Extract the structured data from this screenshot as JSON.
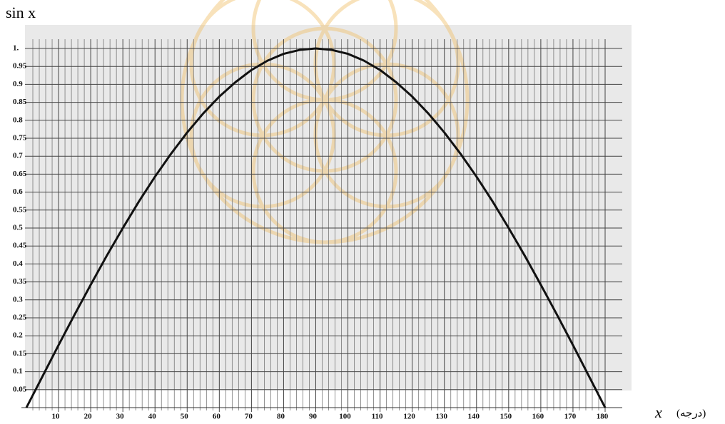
{
  "chart_data": {
    "type": "line",
    "y_label": "sin x",
    "x_label": "x",
    "x_unit": "(درجه)",
    "x": [
      0,
      5,
      10,
      15,
      20,
      25,
      30,
      35,
      40,
      45,
      50,
      55,
      60,
      65,
      70,
      75,
      80,
      85,
      90,
      95,
      100,
      105,
      110,
      115,
      120,
      125,
      130,
      135,
      140,
      145,
      150,
      155,
      160,
      165,
      170,
      175,
      180
    ],
    "values": [
      0,
      0.087,
      0.174,
      0.259,
      0.342,
      0.423,
      0.5,
      0.574,
      0.643,
      0.707,
      0.766,
      0.819,
      0.866,
      0.906,
      0.94,
      0.966,
      0.985,
      0.996,
      1,
      0.996,
      0.985,
      0.966,
      0.94,
      0.906,
      0.866,
      0.819,
      0.766,
      0.707,
      0.643,
      0.574,
      0.5,
      0.423,
      0.342,
      0.259,
      0.174,
      0.087,
      0
    ],
    "color": "#111111",
    "xlim": [
      0,
      180
    ],
    "ylim": [
      0,
      1
    ],
    "xticks": [
      10,
      20,
      30,
      40,
      50,
      60,
      70,
      80,
      90,
      100,
      110,
      120,
      130,
      140,
      150,
      160,
      170,
      180
    ],
    "minor_xticks": [
      2,
      4,
      6,
      8,
      12,
      14,
      16,
      18,
      22,
      24,
      26,
      28,
      32,
      34,
      36,
      38,
      42,
      44,
      46,
      48,
      52,
      54,
      56,
      58,
      62,
      64,
      66,
      68,
      72,
      74,
      76,
      78,
      82,
      84,
      86,
      88,
      92,
      94,
      96,
      98,
      102,
      104,
      106,
      108,
      112,
      114,
      116,
      118,
      122,
      124,
      126,
      128,
      132,
      134,
      136,
      138,
      142,
      144,
      146,
      148,
      152,
      154,
      156,
      158,
      162,
      164,
      166,
      168,
      172,
      174,
      176,
      178
    ],
    "yticks": [
      0.05,
      0.1,
      0.15,
      0.2,
      0.25,
      0.3,
      0.35,
      0.4,
      0.45,
      0.5,
      0.55,
      0.6,
      0.65,
      0.7,
      0.75,
      0.8,
      0.85,
      0.9,
      0.95,
      {
        "value": 1,
        "label": "1."
      }
    ],
    "grid": true
  }
}
